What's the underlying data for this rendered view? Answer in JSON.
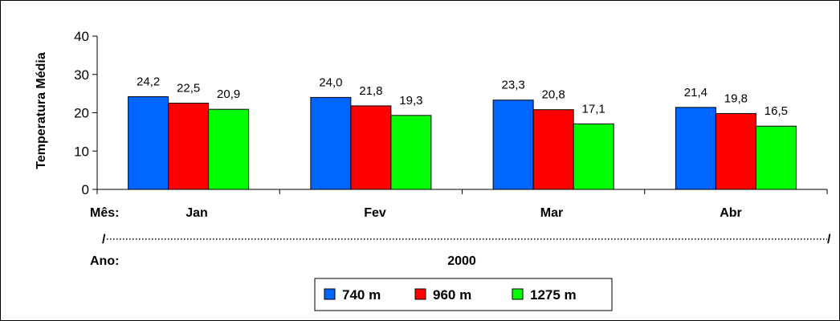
{
  "chart_data": {
    "type": "bar",
    "ylabel": "Temperatura Média",
    "ylim": [
      0,
      40
    ],
    "yticks": [
      0,
      10,
      20,
      30,
      40
    ],
    "categories": [
      "Jan",
      "Fev",
      "Mar",
      "Abr"
    ],
    "series": [
      {
        "name": "740 m",
        "color": "#0066ff",
        "values": [
          24.2,
          24.0,
          23.3,
          21.4
        ],
        "labels": [
          "24,2",
          "24,0",
          "23,3",
          "21,4"
        ]
      },
      {
        "name": "960 m",
        "color": "#ff0000",
        "values": [
          22.5,
          21.8,
          20.8,
          19.8
        ],
        "labels": [
          "22,5",
          "21,8",
          "20,8",
          "19,8"
        ]
      },
      {
        "name": "1275 m",
        "color": "#00ff00",
        "values": [
          20.9,
          19.3,
          17.1,
          16.5
        ],
        "labels": [
          "20,9",
          "19,3",
          "17,1",
          "16,5"
        ]
      }
    ],
    "month_row_label": "Mês:",
    "year_row_label": "Ano:",
    "year": "2000",
    "separator_start": "/",
    "separator_end": "/",
    "legend_position": "bottom-center",
    "grid": false
  }
}
